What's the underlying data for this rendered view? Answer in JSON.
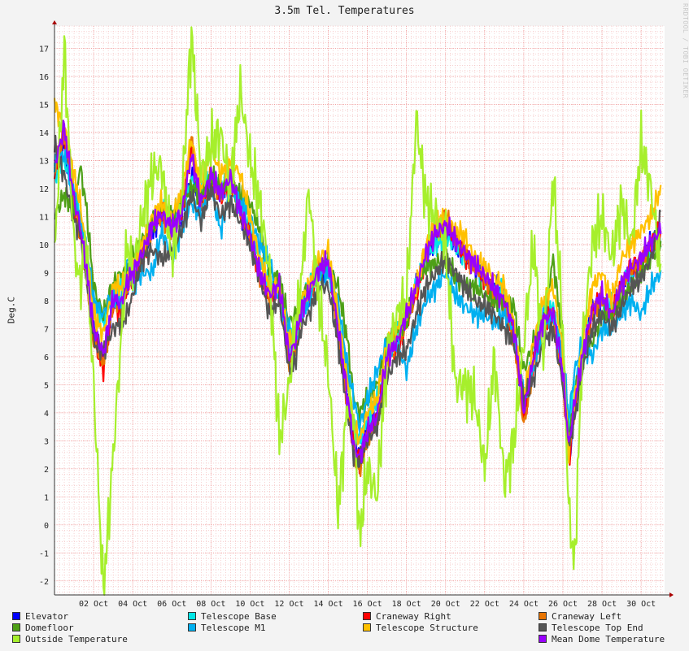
{
  "chart_data": {
    "type": "line",
    "title": "3.5m Tel. Temperatures",
    "ylabel": "Deg.C",
    "watermark": "RRDTOOL / TOBI OETIKER",
    "ylim": [
      -2.5,
      17.8
    ],
    "xlim": [
      0.0,
      31.2
    ],
    "x_unit": "day of October",
    "y_ticks": [
      -2,
      -1,
      0,
      1,
      2,
      3,
      4,
      5,
      6,
      7,
      8,
      9,
      10,
      11,
      12,
      13,
      14,
      15,
      16,
      17
    ],
    "x_ticks": [
      {
        "day": 2,
        "label": "02 Oct"
      },
      {
        "day": 4,
        "label": "04 Oct"
      },
      {
        "day": 6,
        "label": "06 Oct"
      },
      {
        "day": 8,
        "label": "08 Oct"
      },
      {
        "day": 10,
        "label": "10 Oct"
      },
      {
        "day": 12,
        "label": "12 Oct"
      },
      {
        "day": 14,
        "label": "14 Oct"
      },
      {
        "day": 16,
        "label": "16 Oct"
      },
      {
        "day": 18,
        "label": "18 Oct"
      },
      {
        "day": 20,
        "label": "20 Oct"
      },
      {
        "day": 22,
        "label": "22 Oct"
      },
      {
        "day": 24,
        "label": "24 Oct"
      },
      {
        "day": 26,
        "label": "26 Oct"
      },
      {
        "day": 28,
        "label": "28 Oct"
      },
      {
        "day": 30,
        "label": "30 Oct"
      }
    ],
    "grid": true,
    "legend_position": "bottom",
    "base_x": [
      0,
      0.5,
      1,
      1.3,
      1.6,
      2,
      2.5,
      3,
      3.4,
      3.7,
      4,
      4.5,
      5,
      5.5,
      6,
      6.5,
      7,
      7.5,
      8,
      8.5,
      9,
      9.5,
      10,
      10.5,
      11,
      11.5,
      12,
      12.3,
      12.6,
      13,
      13.5,
      14,
      14.5,
      15,
      15.3,
      15.6,
      16,
      16.5,
      17,
      17.5,
      18,
      18.5,
      19,
      19.5,
      20,
      20.5,
      21,
      21.5,
      22,
      22.5,
      23,
      23.5,
      24,
      24.5,
      25,
      25.5,
      26,
      26.3,
      26.6,
      27,
      27.5,
      28,
      28.5,
      29,
      29.5,
      30,
      30.5,
      31
    ],
    "series": [
      {
        "name": "Elevator",
        "color": "#0000ff",
        "values": [
          12.8,
          13.5,
          11.5,
          10.8,
          9.2,
          7.0,
          6.0,
          8.0,
          7.8,
          8.5,
          8.8,
          9.5,
          10.5,
          11.0,
          10.5,
          11.0,
          12.5,
          11.5,
          12.5,
          11.8,
          12.2,
          11.2,
          10.2,
          9.0,
          8.2,
          8.5,
          6.0,
          6.5,
          7.5,
          8.2,
          9.0,
          9.2,
          7.0,
          4.5,
          3.0,
          2.5,
          3.5,
          4.0,
          6.0,
          6.5,
          7.5,
          8.5,
          9.5,
          10.3,
          10.5,
          10.0,
          9.5,
          9.2,
          8.8,
          8.5,
          8.2,
          7.0,
          4.0,
          6.0,
          7.5,
          7.8,
          5.5,
          1.9,
          4.5,
          6.0,
          7.8,
          8.0,
          7.5,
          8.5,
          9.0,
          9.5,
          10.0,
          10.5
        ]
      },
      {
        "name": "Telescope Base",
        "color": "#00e6e6",
        "values": [
          12.5,
          13.0,
          11.8,
          11.0,
          9.8,
          8.0,
          7.2,
          8.5,
          8.5,
          8.8,
          9.0,
          9.8,
          10.8,
          11.2,
          11.0,
          11.2,
          12.3,
          11.8,
          12.5,
          12.0,
          12.3,
          11.5,
          10.6,
          9.5,
          8.5,
          8.5,
          6.5,
          7.0,
          7.8,
          8.5,
          9.2,
          9.2,
          7.5,
          5.0,
          3.5,
          3.0,
          3.8,
          4.5,
          6.0,
          6.8,
          7.5,
          8.5,
          9.5,
          10.0,
          10.2,
          10.0,
          9.5,
          9.2,
          8.8,
          8.5,
          8.2,
          7.2,
          4.5,
          6.0,
          7.5,
          7.8,
          6.0,
          3.5,
          5.0,
          6.2,
          7.5,
          8.0,
          7.8,
          8.5,
          9.0,
          9.3,
          9.8,
          10.2
        ]
      },
      {
        "name": "Craneway Right",
        "color": "#ff0000",
        "values": [
          12.6,
          13.8,
          11.5,
          10.6,
          9.0,
          6.6,
          5.6,
          7.8,
          7.6,
          8.4,
          8.7,
          9.6,
          10.7,
          11.2,
          10.5,
          11.0,
          13.5,
          11.2,
          12.4,
          11.6,
          12.4,
          11.0,
          10.4,
          8.8,
          8.0,
          8.5,
          5.8,
          6.3,
          7.4,
          8.2,
          9.0,
          9.4,
          6.8,
          4.3,
          2.7,
          2.2,
          3.2,
          3.8,
          5.8,
          6.2,
          7.2,
          8.2,
          9.7,
          10.5,
          10.8,
          10.2,
          9.6,
          9.2,
          8.8,
          8.2,
          7.8,
          6.8,
          3.8,
          5.8,
          7.2,
          7.5,
          5.2,
          2.2,
          4.3,
          5.8,
          7.6,
          8.2,
          7.4,
          8.6,
          9.2,
          9.4,
          10.1,
          10.4
        ]
      },
      {
        "name": "Craneway Left",
        "color": "#e87400",
        "values": [
          12.7,
          14.0,
          11.6,
          10.5,
          9.0,
          6.5,
          5.8,
          7.9,
          7.7,
          8.5,
          8.8,
          9.6,
          10.6,
          11.0,
          10.4,
          11.1,
          13.8,
          11.3,
          12.4,
          11.7,
          12.5,
          11.1,
          10.3,
          8.9,
          8.1,
          8.6,
          5.7,
          6.2,
          7.5,
          8.2,
          9.1,
          9.4,
          6.9,
          4.2,
          2.6,
          2.0,
          3.0,
          3.6,
          5.8,
          6.3,
          7.3,
          8.3,
          9.8,
          10.6,
          10.9,
          10.3,
          9.7,
          9.2,
          8.8,
          8.1,
          7.7,
          6.7,
          3.5,
          5.7,
          7.1,
          7.4,
          5.1,
          2.5,
          4.2,
          5.9,
          7.5,
          8.1,
          7.3,
          8.5,
          9.1,
          9.3,
          10.0,
          10.3
        ]
      },
      {
        "name": "Domefloor",
        "color": "#4ea017",
        "values": [
          11.0,
          11.8,
          11.2,
          12.8,
          11.5,
          8.5,
          7.5,
          8.6,
          9.0,
          9.0,
          9.5,
          10.2,
          10.8,
          11.3,
          11.0,
          11.5,
          12.0,
          11.8,
          12.5,
          12.0,
          12.2,
          11.8,
          11.5,
          10.5,
          9.0,
          8.8,
          7.2,
          7.5,
          8.0,
          8.5,
          9.0,
          9.3,
          8.5,
          6.5,
          4.5,
          4.0,
          4.5,
          5.0,
          6.5,
          7.0,
          7.2,
          8.5,
          9.2,
          9.3,
          9.5,
          8.8,
          8.5,
          8.5,
          8.2,
          8.0,
          8.0,
          7.8,
          5.5,
          6.5,
          7.2,
          9.5,
          6.5,
          3.0,
          4.5,
          6.0,
          6.5,
          7.5,
          7.5,
          8.0,
          8.5,
          9.0,
          9.5,
          10.0
        ]
      },
      {
        "name": "Telescope M1",
        "color": "#00b0f0",
        "values": [
          13.0,
          13.2,
          12.0,
          11.0,
          10.0,
          8.0,
          7.5,
          8.2,
          8.0,
          9.5,
          8.5,
          9.0,
          9.0,
          10.5,
          9.5,
          10.5,
          11.5,
          11.0,
          12.0,
          10.5,
          12.0,
          11.5,
          11.0,
          10.0,
          9.5,
          8.0,
          7.0,
          6.5,
          7.5,
          8.0,
          9.0,
          9.0,
          8.0,
          5.5,
          4.5,
          3.5,
          4.5,
          5.5,
          6.5,
          6.5,
          5.5,
          7.0,
          8.0,
          8.5,
          9.0,
          8.2,
          7.8,
          7.5,
          7.5,
          7.2,
          7.5,
          7.0,
          4.5,
          5.5,
          7.0,
          7.5,
          6.0,
          3.8,
          5.5,
          6.5,
          6.0,
          7.0,
          7.0,
          7.5,
          8.0,
          7.5,
          8.5,
          9.0
        ]
      },
      {
        "name": "Telescope Structure",
        "color": "#ffc000",
        "values": [
          15.0,
          14.2,
          12.5,
          11.5,
          10.0,
          7.5,
          6.8,
          8.5,
          8.5,
          8.8,
          9.2,
          10.0,
          11.0,
          11.5,
          11.0,
          11.8,
          13.8,
          12.0,
          13.5,
          12.5,
          13.0,
          12.5,
          11.0,
          9.5,
          8.5,
          8.5,
          6.5,
          7.0,
          8.0,
          8.5,
          9.5,
          9.8,
          7.5,
          5.0,
          3.5,
          3.0,
          4.0,
          4.5,
          6.5,
          7.0,
          7.5,
          8.5,
          10.0,
          10.8,
          11.0,
          10.5,
          10.3,
          9.5,
          9.2,
          8.8,
          8.5,
          7.2,
          4.5,
          6.5,
          8.0,
          8.5,
          6.2,
          2.5,
          4.5,
          6.5,
          8.5,
          9.0,
          8.0,
          9.5,
          10.0,
          10.5,
          11.0,
          12.0
        ]
      },
      {
        "name": "Telescope Top End",
        "color": "#555555",
        "values": [
          13.5,
          12.5,
          10.8,
          10.5,
          9.0,
          6.5,
          6.2,
          7.0,
          7.2,
          7.5,
          8.2,
          9.5,
          9.8,
          9.5,
          9.8,
          10.5,
          11.8,
          10.8,
          12.0,
          11.0,
          11.5,
          10.8,
          10.0,
          8.8,
          7.5,
          8.0,
          5.5,
          5.8,
          7.0,
          7.5,
          8.5,
          8.5,
          6.5,
          4.0,
          2.5,
          2.2,
          3.0,
          3.5,
          5.2,
          6.0,
          6.2,
          7.5,
          8.5,
          9.0,
          9.5,
          9.0,
          8.5,
          8.0,
          7.8,
          7.5,
          7.0,
          6.5,
          4.5,
          5.2,
          6.5,
          7.0,
          5.0,
          2.8,
          3.8,
          5.5,
          7.0,
          7.5,
          7.0,
          7.8,
          8.5,
          8.8,
          9.5,
          11.0
        ]
      },
      {
        "name": "Outside Temperature",
        "color": "#a6ef2c",
        "values": [
          9.5,
          17.0,
          10.0,
          8.5,
          10.2,
          5.0,
          -2.5,
          2.5,
          6.5,
          10.0,
          9.0,
          11.0,
          12.5,
          12.8,
          9.5,
          11.5,
          17.5,
          12.5,
          13.5,
          14.0,
          12.0,
          15.5,
          13.0,
          11.5,
          9.0,
          3.0,
          5.0,
          7.0,
          8.5,
          12.0,
          8.0,
          5.5,
          0.5,
          4.5,
          3.8,
          -0.5,
          2.0,
          1.0,
          6.0,
          7.5,
          8.0,
          14.5,
          11.5,
          11.0,
          10.0,
          5.0,
          5.0,
          4.5,
          2.0,
          6.0,
          1.5,
          3.0,
          6.5,
          10.0,
          6.0,
          12.5,
          7.0,
          0.5,
          -1.5,
          6.5,
          10.0,
          11.0,
          9.5,
          11.5,
          10.0,
          13.5,
          12.0,
          9.0
        ]
      },
      {
        "name": "Mean Dome Temperature",
        "color": "#9900ff",
        "values": [
          12.8,
          14.2,
          11.6,
          10.7,
          9.3,
          7.0,
          6.1,
          8.1,
          7.9,
          8.6,
          9.0,
          9.7,
          10.7,
          11.1,
          10.6,
          11.1,
          13.2,
          11.5,
          12.5,
          11.8,
          12.4,
          11.2,
          10.3,
          9.0,
          8.2,
          8.6,
          6.0,
          6.5,
          7.6,
          8.3,
          9.1,
          9.4,
          7.0,
          4.5,
          2.8,
          2.4,
          3.3,
          3.9,
          6.0,
          6.5,
          7.5,
          8.5,
          9.7,
          10.4,
          10.7,
          10.2,
          9.7,
          9.3,
          8.9,
          8.4,
          8.0,
          7.0,
          4.0,
          6.0,
          7.3,
          7.6,
          5.4,
          2.8,
          4.4,
          6.0,
          7.7,
          8.2,
          7.5,
          8.6,
          9.2,
          9.5,
          10.1,
          10.5
        ]
      }
    ]
  }
}
